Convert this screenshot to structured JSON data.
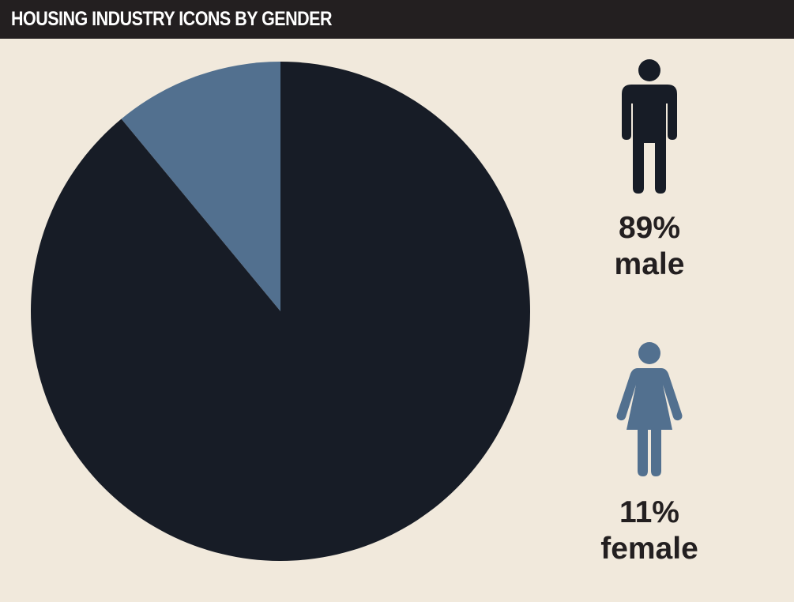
{
  "header": {
    "title": "HOUSING INDUSTRY ICONS BY GENDER"
  },
  "colors": {
    "background": "#f1e9dc",
    "header": "#231f20",
    "male": "#171c26",
    "female": "#52708f"
  },
  "chart_data": {
    "type": "pie",
    "title": "HOUSING INDUSTRY ICONS BY GENDER",
    "series": [
      {
        "name": "male",
        "value": 89,
        "color": "#171c26"
      },
      {
        "name": "female",
        "value": 11,
        "color": "#52708f"
      }
    ],
    "labels": [
      {
        "percent": "89%",
        "gender": "male",
        "icon": "male-icon"
      },
      {
        "percent": "11%",
        "gender": "female",
        "icon": "female-icon"
      }
    ]
  }
}
